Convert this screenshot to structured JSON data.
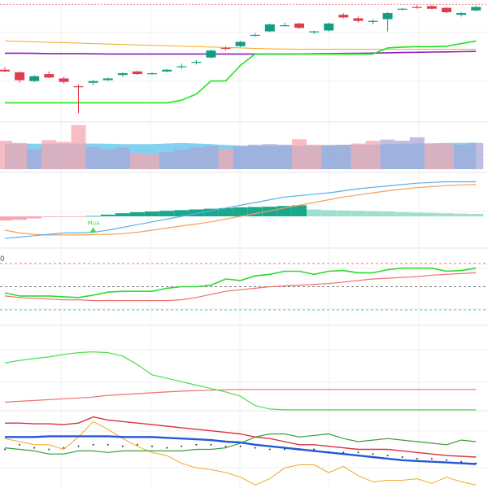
{
  "colors": {
    "up": "#139e84",
    "down": "#e23b4b",
    "wick_up": "#139e84",
    "wick_down": "#e23b4b",
    "grid": "#f0f0f3",
    "pane_sep": "#e6e6ea",
    "stop_line": "#1ee61e",
    "orange_line": "#f5a623",
    "purple_line": "#8e1fb5",
    "red_dotted": "#f28b8b",
    "vol_up": "#a8a8d8",
    "vol_down": "#f4a6b0",
    "vol_ma": "#5bc0eb",
    "hist_pos": "#1aa88a",
    "hist_pos_light": "#9ee0cf",
    "hist_neg": "#f7a9b3",
    "macd_line": "#5daee8",
    "signal_line": "#f5a05a",
    "rsi_green": "#2bdc2b",
    "rsi_red": "#f07070",
    "band_red": "#f07070",
    "band_gray": "#777777",
    "band_green": "#5fd35f",
    "green_curve": "#47e047",
    "red_curve": "#f07070",
    "last_red": "#d9343f",
    "last_green": "#3a9e3a",
    "last_orange": "#f5a623",
    "last_blue": "#2458d8",
    "marker": "#39e639"
  },
  "chart_data": [
    {
      "type": "candlestick",
      "pane": "price",
      "candles": [
        {
          "o": 98.0,
          "h": 98.6,
          "l": 97.4,
          "c": 97.6
        },
        {
          "o": 97.4,
          "h": 97.6,
          "l": 95.0,
          "c": 95.6
        },
        {
          "o": 95.4,
          "h": 96.8,
          "l": 95.2,
          "c": 96.5
        },
        {
          "o": 97.0,
          "h": 97.6,
          "l": 96.1,
          "c": 96.2
        },
        {
          "o": 96.0,
          "h": 96.4,
          "l": 94.8,
          "c": 95.2
        },
        {
          "o": 94.2,
          "h": 94.6,
          "l": 88.0,
          "c": 94.0
        },
        {
          "o": 95.0,
          "h": 95.6,
          "l": 94.4,
          "c": 95.4
        },
        {
          "o": 95.6,
          "h": 96.2,
          "l": 95.4,
          "c": 96.0
        },
        {
          "o": 96.8,
          "h": 97.4,
          "l": 96.4,
          "c": 97.2
        },
        {
          "o": 97.6,
          "h": 97.8,
          "l": 96.8,
          "c": 97.0
        },
        {
          "o": 97.2,
          "h": 97.4,
          "l": 96.8,
          "c": 97.2
        },
        {
          "o": 97.6,
          "h": 98.2,
          "l": 97.4,
          "c": 98.0
        },
        {
          "o": 98.6,
          "h": 99.4,
          "l": 98.2,
          "c": 98.8
        },
        {
          "o": 99.6,
          "h": 100.2,
          "l": 99.2,
          "c": 99.8
        },
        {
          "o": 100.8,
          "h": 102.6,
          "l": 100.6,
          "c": 102.4
        },
        {
          "o": 103.0,
          "h": 103.4,
          "l": 102.4,
          "c": 102.8
        },
        {
          "o": 103.4,
          "h": 104.6,
          "l": 103.2,
          "c": 104.4
        },
        {
          "o": 105.8,
          "h": 106.4,
          "l": 105.6,
          "c": 106.0
        },
        {
          "o": 106.8,
          "h": 108.6,
          "l": 106.6,
          "c": 108.4
        },
        {
          "o": 108.2,
          "h": 108.8,
          "l": 108.0,
          "c": 108.2
        },
        {
          "o": 108.6,
          "h": 108.8,
          "l": 107.4,
          "c": 107.6
        },
        {
          "o": 106.6,
          "h": 107.0,
          "l": 106.2,
          "c": 106.8
        },
        {
          "o": 107.0,
          "h": 108.8,
          "l": 106.8,
          "c": 108.6
        },
        {
          "o": 110.6,
          "h": 111.0,
          "l": 109.8,
          "c": 110.0
        },
        {
          "o": 109.8,
          "h": 110.2,
          "l": 108.8,
          "c": 109.2
        },
        {
          "o": 109.0,
          "h": 109.6,
          "l": 108.4,
          "c": 109.2
        },
        {
          "o": 109.6,
          "h": 111.2,
          "l": 106.8,
          "c": 111.0
        },
        {
          "o": 111.8,
          "h": 112.2,
          "l": 111.6,
          "c": 112.0
        },
        {
          "o": 112.4,
          "h": 112.8,
          "l": 112.0,
          "c": 112.2
        },
        {
          "o": 112.6,
          "h": 112.8,
          "l": 111.8,
          "c": 112.0
        },
        {
          "o": 112.2,
          "h": 112.4,
          "l": 111.0,
          "c": 111.2
        },
        {
          "o": 110.6,
          "h": 111.2,
          "l": 110.2,
          "c": 111.0
        },
        {
          "o": 111.6,
          "h": 112.6,
          "l": 111.4,
          "c": 112.4
        }
      ],
      "stop_line": [
        90.4,
        90.4,
        90.4,
        90.4,
        90.4,
        90.4,
        90.4,
        90.4,
        90.4,
        90.4,
        90.4,
        90.4,
        91.0,
        92.4,
        95.4,
        95.4,
        99.0,
        101.6,
        101.6,
        101.6,
        101.6,
        101.6,
        101.6,
        101.6,
        101.6,
        101.6,
        103.0,
        103.2,
        103.3,
        103.3,
        103.4,
        104.0,
        104.6
      ],
      "orange_line": [
        104.6,
        104.5,
        104.4,
        104.3,
        104.2,
        104.1,
        104.0,
        103.9,
        103.8,
        103.7,
        103.6,
        103.5,
        103.4,
        103.3,
        103.2,
        103.1,
        103.0,
        102.9,
        102.8,
        102.75,
        102.7,
        102.7,
        102.7,
        102.7,
        102.7,
        102.7,
        102.7,
        102.7,
        102.7,
        102.7,
        102.7,
        102.7,
        102.7
      ],
      "purple_line": [
        101.8,
        101.8,
        101.75,
        101.7,
        101.7,
        101.7,
        101.65,
        101.6,
        101.6,
        101.6,
        101.6,
        101.6,
        101.6,
        101.6,
        101.6,
        101.6,
        101.6,
        101.6,
        101.6,
        101.6,
        101.62,
        101.66,
        101.7,
        101.74,
        101.78,
        101.82,
        101.88,
        101.95,
        102.0,
        102.05,
        102.1,
        102.15,
        102.2
      ],
      "dotted_level": 113.0,
      "ylim": [
        86,
        114
      ]
    },
    {
      "type": "bar",
      "pane": "volume",
      "values": [
        100,
        92,
        70,
        102,
        96,
        155,
        78,
        70,
        76,
        55,
        52,
        60,
        68,
        76,
        82,
        70,
        80,
        86,
        88,
        86,
        105,
        86,
        85,
        86,
        90,
        100,
        104,
        100,
        112,
        90,
        88,
        86,
        92
      ],
      "up": [
        false,
        false,
        true,
        false,
        false,
        false,
        true,
        true,
        true,
        false,
        false,
        true,
        true,
        true,
        true,
        false,
        true,
        true,
        true,
        true,
        false,
        false,
        true,
        true,
        false,
        false,
        true,
        true,
        true,
        false,
        false,
        true,
        true
      ],
      "ma": [
        90,
        90,
        89,
        89,
        90,
        90,
        90,
        89,
        88,
        88,
        88,
        90,
        92,
        90,
        88,
        85,
        83,
        82,
        82,
        82,
        83,
        83,
        84,
        85,
        86,
        87,
        88,
        89,
        90,
        91,
        92,
        92,
        93
      ],
      "ylim": [
        0,
        160
      ]
    },
    {
      "type": "line",
      "pane": "macd",
      "histogram": [
        -0.6,
        -0.5,
        -0.3,
        -0.1,
        -0.05,
        -0.02,
        0.05,
        0.25,
        0.45,
        0.6,
        0.7,
        0.8,
        0.9,
        1.0,
        1.1,
        1.2,
        1.3,
        1.35,
        1.4,
        1.5,
        1.6,
        1.0,
        0.9,
        0.85,
        0.8,
        0.75,
        0.7,
        0.6,
        0.55,
        0.5,
        0.45,
        0.4,
        0.35
      ],
      "macd": [
        -3.2,
        -3.0,
        -2.8,
        -2.6,
        -2.4,
        -2.4,
        -2.3,
        -2.0,
        -1.6,
        -1.2,
        -0.8,
        -0.4,
        0.0,
        0.4,
        0.8,
        1.2,
        1.6,
        2.0,
        2.4,
        2.8,
        3.0,
        3.2,
        3.4,
        3.7,
        4.0,
        4.2,
        4.4,
        4.6,
        4.8,
        4.9,
        5.0,
        5.0,
        5.0
      ],
      "signal": [
        -2.0,
        -2.4,
        -2.6,
        -2.7,
        -2.7,
        -2.7,
        -2.65,
        -2.6,
        -2.5,
        -2.3,
        -2.0,
        -1.7,
        -1.4,
        -1.1,
        -0.8,
        -0.4,
        0.0,
        0.4,
        0.8,
        1.2,
        1.6,
        2.0,
        2.4,
        2.8,
        3.1,
        3.4,
        3.7,
        3.95,
        4.15,
        4.3,
        4.45,
        4.55,
        4.6
      ],
      "marker_index": 6,
      "marker_label": "Mua",
      "ylim": [
        -4,
        6
      ]
    },
    {
      "type": "line",
      "pane": "oscillator",
      "green": [
        42,
        38,
        38,
        38,
        37,
        36,
        39,
        43,
        44,
        44,
        44,
        48,
        50,
        50,
        52,
        60,
        58,
        64,
        66,
        70,
        70,
        66,
        70,
        71,
        68,
        68,
        72,
        74,
        74,
        74,
        70,
        71,
        74
      ],
      "red": [
        38,
        36,
        35,
        34,
        33,
        33,
        32,
        32,
        32,
        32,
        32,
        32,
        33,
        36,
        40,
        44,
        46,
        48,
        50,
        51,
        52,
        53,
        54,
        56,
        58,
        60,
        61,
        62,
        63,
        65,
        66,
        67,
        68
      ],
      "upper_band": 80,
      "middle_band": 50,
      "lower_band": 20,
      "ylim": [
        0,
        100
      ]
    },
    {
      "type": "line",
      "pane": "trend",
      "green": [
        56,
        59,
        61,
        63,
        66,
        68,
        69,
        68,
        64,
        54,
        42,
        38,
        34,
        30,
        26,
        22,
        17,
        6,
        2,
        1,
        1,
        1,
        1,
        1,
        1,
        1,
        1,
        1,
        1,
        1,
        1,
        1,
        1
      ],
      "red": [
        10,
        11,
        12,
        13,
        14,
        15,
        16,
        18,
        19,
        20,
        21,
        22,
        23,
        23.5,
        24,
        24.5,
        25,
        25,
        25,
        25,
        25,
        25,
        25,
        25,
        25,
        25,
        25,
        25,
        25,
        25,
        25,
        25,
        25
      ],
      "ylim": [
        0,
        100
      ]
    },
    {
      "type": "line",
      "pane": "multi",
      "red": [
        8.4,
        8.4,
        8.3,
        8.3,
        8.2,
        8.4,
        9.2,
        8.8,
        8.6,
        8.4,
        8.2,
        8.0,
        7.8,
        7.6,
        7.4,
        7.2,
        7.0,
        6.6,
        6.4,
        6.0,
        5.6,
        5.6,
        5.4,
        5.2,
        5.0,
        5.0,
        5.0,
        4.8,
        4.6,
        4.4,
        4.2,
        4.1,
        4.0
      ],
      "green": [
        5.2,
        5.0,
        4.8,
        4.4,
        4.4,
        4.8,
        4.8,
        4.6,
        4.8,
        4.8,
        4.8,
        4.8,
        4.8,
        5.0,
        5.0,
        5.2,
        5.8,
        6.6,
        7.0,
        7.0,
        6.6,
        6.8,
        7.0,
        6.4,
        6.0,
        6.2,
        6.4,
        6.2,
        6.0,
        5.8,
        5.6,
        6.2,
        6.0
      ],
      "orange": [
        6.4,
        6.0,
        5.6,
        5.6,
        5.0,
        6.6,
        8.6,
        7.6,
        6.4,
        5.4,
        4.6,
        4.2,
        3.2,
        2.6,
        2.4,
        2.0,
        1.4,
        0.4,
        1.2,
        2.6,
        3.0,
        3.0,
        2.0,
        2.8,
        1.6,
        0.8,
        1.0,
        1.0,
        1.2,
        0.6,
        1.4,
        0.8,
        0.4
      ],
      "blue": [
        6.6,
        6.6,
        6.6,
        6.7,
        6.7,
        6.7,
        6.7,
        6.7,
        6.6,
        6.6,
        6.6,
        6.5,
        6.4,
        6.3,
        6.2,
        6.0,
        5.9,
        5.6,
        5.4,
        5.2,
        5.0,
        4.8,
        4.6,
        4.4,
        4.2,
        4.0,
        3.8,
        3.6,
        3.5,
        3.4,
        3.3,
        3.2,
        3.1
      ],
      "dotted": [
        5.0,
        5.6,
        5.2,
        5.0,
        5.2,
        5.4,
        5.6,
        5.6,
        5.4,
        5.6,
        5.4,
        5.2,
        5.4,
        5.6,
        5.6,
        5.4,
        5.4,
        5.2,
        5.0,
        5.0,
        5.0,
        5.0,
        4.6,
        4.6,
        4.6,
        4.4,
        4.2,
        4.0,
        3.8,
        3.8,
        3.6,
        3.4,
        3.2
      ],
      "ylim": [
        0,
        10
      ]
    }
  ],
  "last_values": {
    "red": "",
    "green": "",
    "orange": "",
    "blue": ""
  }
}
